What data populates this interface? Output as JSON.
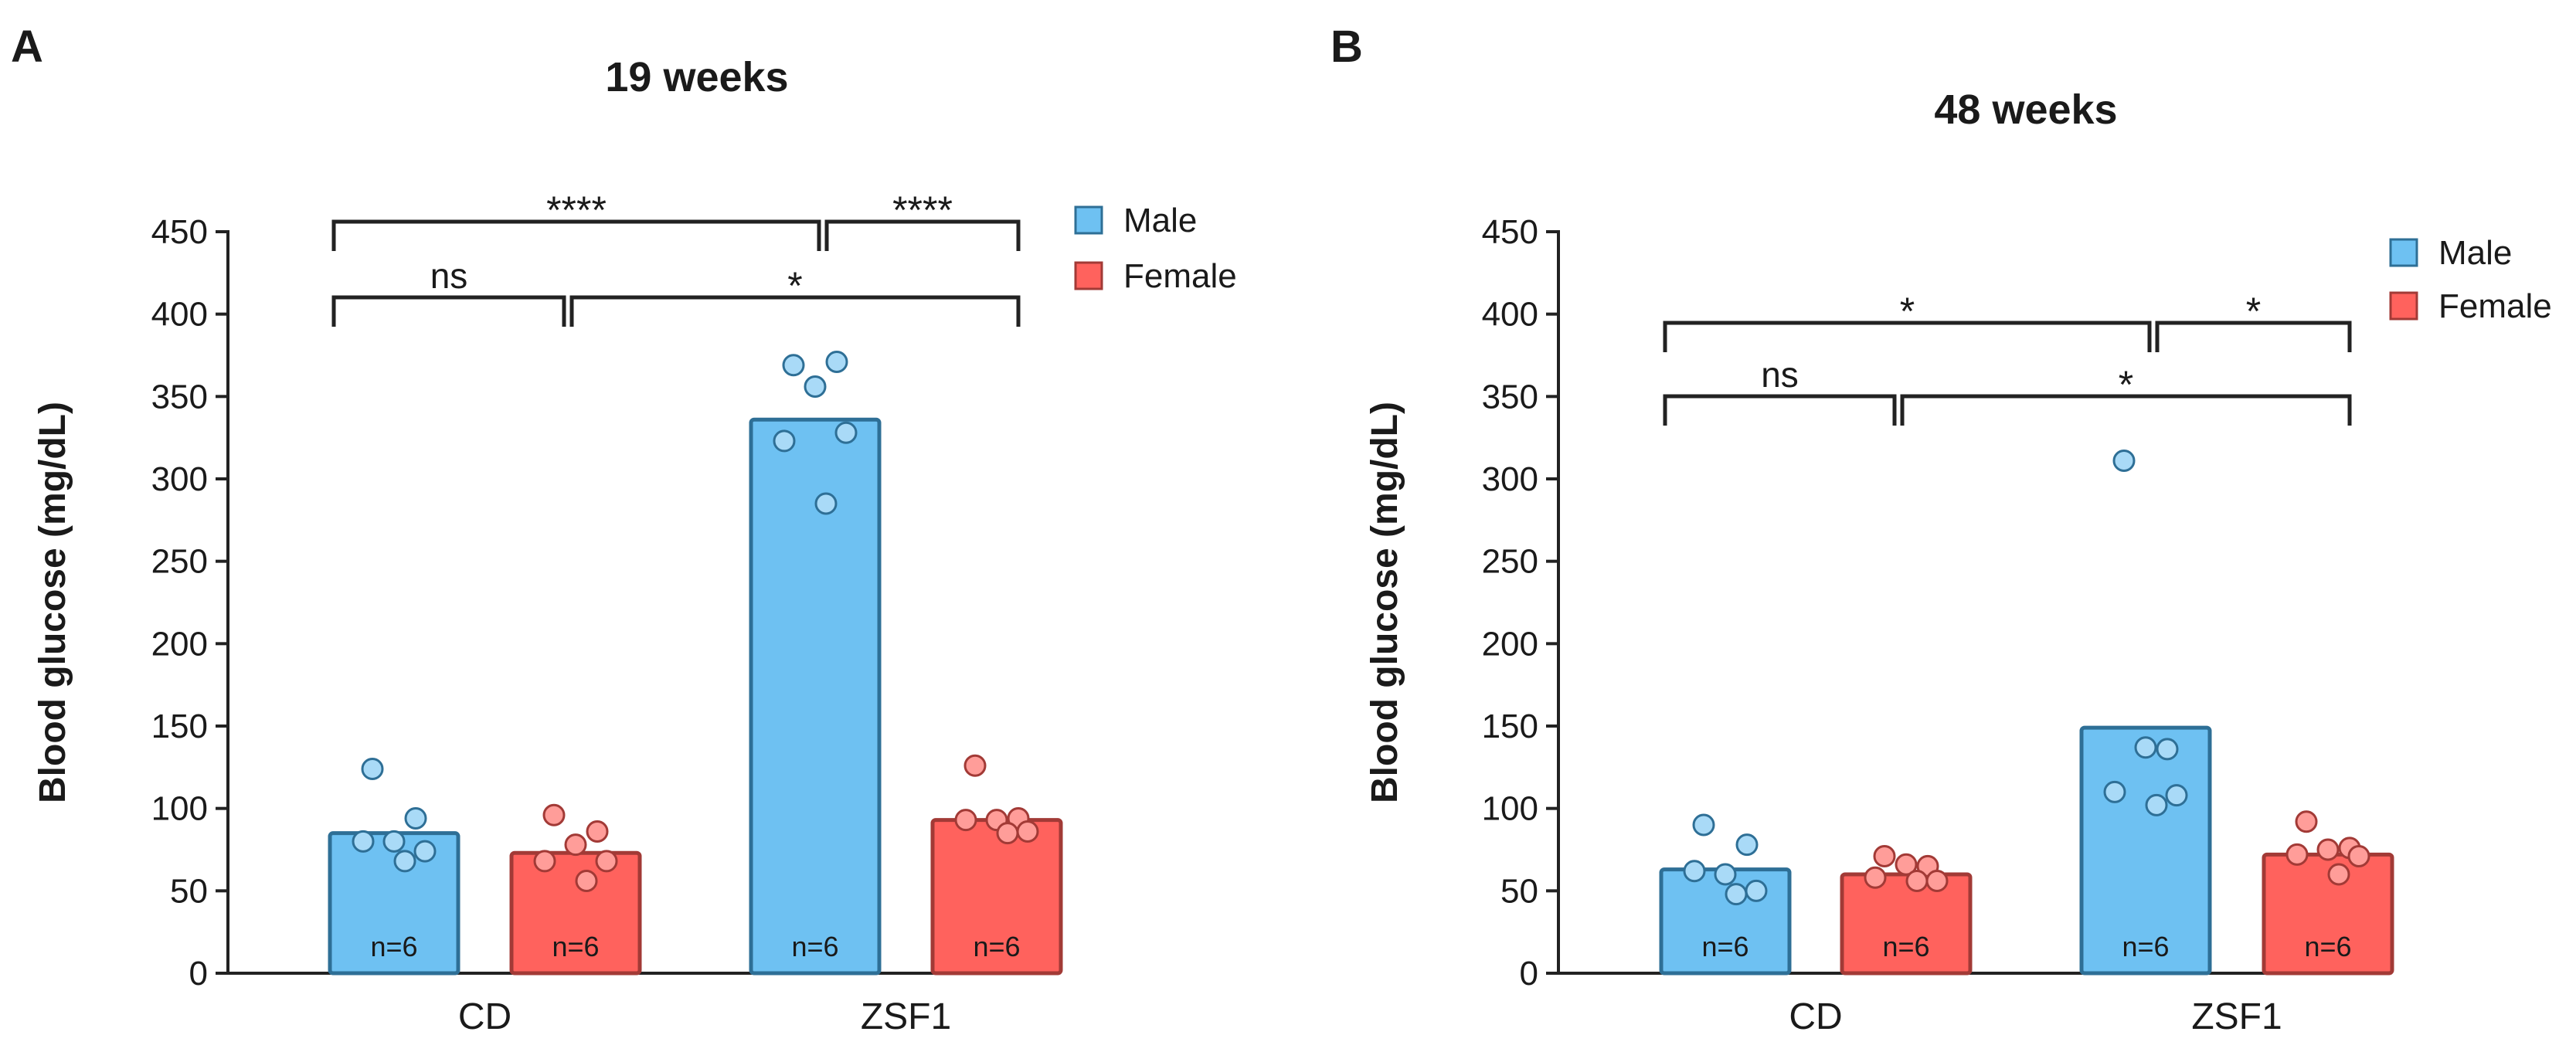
{
  "colors": {
    "male_fill": "#6EC1F2",
    "male_stroke": "#2E6F96",
    "male_point_fill": "#A9DAF7",
    "female_fill": "#FF625D",
    "female_stroke": "#A23A36",
    "female_point_fill": "#FF9D99",
    "axis": "#222222"
  },
  "chart_data": [
    {
      "panel": "A",
      "type": "bar",
      "title": "19 weeks",
      "xlabel": "",
      "ylabel": "Blood glucose (mg/dL)",
      "ylim": [
        0,
        450
      ],
      "yticks": [
        "0",
        "50",
        "100",
        "150",
        "200",
        "250",
        "300",
        "350",
        "400",
        "450"
      ],
      "legend_position": "top-right",
      "legend": [
        "Male",
        "Female"
      ],
      "groups": [
        "CD",
        "ZSF1"
      ],
      "bars": [
        {
          "group": "CD",
          "series": "Male",
          "value": 85,
          "n_label": "n=6",
          "points": [
            124,
            94,
            80,
            80,
            74,
            68
          ]
        },
        {
          "group": "CD",
          "series": "Female",
          "value": 73,
          "n_label": "n=6",
          "points": [
            96,
            86,
            78,
            68,
            68,
            56
          ]
        },
        {
          "group": "ZSF1",
          "series": "Male",
          "value": 336,
          "n_label": "n=6",
          "points": [
            369,
            371,
            356,
            323,
            328,
            285
          ]
        },
        {
          "group": "ZSF1",
          "series": "Female",
          "value": 93,
          "n_label": "n=6",
          "points": [
            126,
            94,
            93,
            93,
            86,
            85
          ]
        }
      ],
      "comparisons": [
        {
          "from": "CD Male",
          "to": "CD Female",
          "label": "ns",
          "level": 1
        },
        {
          "from": "CD Female",
          "to": "ZSF1 Female",
          "label": "*",
          "level": 1
        },
        {
          "from": "CD Male",
          "to": "ZSF1 Male",
          "label": "****",
          "level": 2
        },
        {
          "from": "ZSF1 Male",
          "to": "ZSF1 Female",
          "label": "****",
          "level": 2
        }
      ]
    },
    {
      "panel": "B",
      "type": "bar",
      "title": "48 weeks",
      "xlabel": "",
      "ylabel": "Blood glucose (mg/dL)",
      "ylim": [
        0,
        450
      ],
      "yticks": [
        "0",
        "50",
        "100",
        "150",
        "200",
        "250",
        "300",
        "350",
        "400",
        "450"
      ],
      "legend_position": "top-right",
      "legend": [
        "Male",
        "Female"
      ],
      "groups": [
        "CD",
        "ZSF1"
      ],
      "bars": [
        {
          "group": "CD",
          "series": "Male",
          "value": 63,
          "n_label": "n=6",
          "points": [
            90,
            78,
            60,
            62,
            50,
            48
          ]
        },
        {
          "group": "CD",
          "series": "Female",
          "value": 60,
          "n_label": "n=6",
          "points": [
            71,
            65,
            66,
            58,
            56,
            56
          ]
        },
        {
          "group": "ZSF1",
          "series": "Male",
          "value": 149,
          "n_label": "n=6",
          "points": [
            311,
            136,
            137,
            110,
            108,
            102
          ]
        },
        {
          "group": "ZSF1",
          "series": "Female",
          "value": 72,
          "n_label": "n=6",
          "points": [
            92,
            76,
            75,
            72,
            71,
            60
          ]
        }
      ],
      "comparisons": [
        {
          "from": "CD Male",
          "to": "CD Female",
          "label": "ns",
          "level": 1
        },
        {
          "from": "CD Female",
          "to": "ZSF1 Female",
          "label": "*",
          "level": 1
        },
        {
          "from": "CD Male",
          "to": "ZSF1 Male",
          "label": "*",
          "level": 2
        },
        {
          "from": "ZSF1 Male",
          "to": "ZSF1 Female",
          "label": "*",
          "level": 2
        }
      ]
    }
  ]
}
